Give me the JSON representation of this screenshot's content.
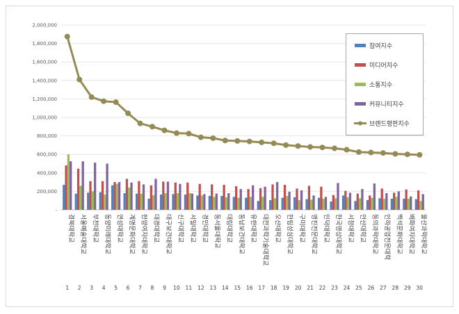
{
  "chart_data": {
    "type": "bar",
    "title": "",
    "xlabel": "",
    "ylabel": "",
    "ylim": [
      0,
      2000000
    ],
    "yticks": [
      "-",
      "200,000",
      "400,000",
      "600,000",
      "800,000",
      "1,000,000",
      "1,200,000",
      "1,400,000",
      "1,600,000",
      "1,800,000",
      "2,000,000"
    ],
    "grid": true,
    "legend_position": "right",
    "categories": [
      "경북대학교",
      "서울예술대학교",
      "부천대학교",
      "동양미래대학교",
      "연성대학교",
      "계명문화대학교",
      "한양여자대학교",
      "대경대학교",
      "대구보건대학교",
      "신구대학교",
      "서일대학교",
      "경민대학교",
      "동서울대학교",
      "대림대학교",
      "동남보건대학교",
      "유한대학교",
      "대전과학기술대학교",
      "오산대학교",
      "한림성심대학교",
      "구미대학교",
      "영진전문대학교",
      "인덕대학교",
      "한국영상대학교",
      "서정대학교",
      "안산대학교",
      "동의과학대학교",
      "인하공업전문대학",
      "백석문화대학교",
      "배화여자대학교",
      "울산과학대학교"
    ],
    "indices": [
      "1",
      "2",
      "3",
      "4",
      "5",
      "6",
      "7",
      "8",
      "9",
      "10",
      "11",
      "12",
      "13",
      "14",
      "15",
      "16",
      "17",
      "18",
      "19",
      "20",
      "21",
      "22",
      "23",
      "24",
      "25",
      "26",
      "27",
      "28",
      "29",
      "30"
    ],
    "series": [
      {
        "name": "참여지수",
        "type": "bar",
        "color": "#4F81BD",
        "values": [
          270000,
          175000,
          185000,
          190000,
          265000,
          180000,
          175000,
          120000,
          165000,
          170000,
          165000,
          155000,
          150000,
          150000,
          140000,
          130000,
          95000,
          105000,
          130000,
          135000,
          115000,
          130000,
          90000,
          155000,
          95000,
          105000,
          125000,
          120000,
          120000,
          115000
        ]
      },
      {
        "name": "미디어지수",
        "type": "bar",
        "color": "#C0504D",
        "values": [
          480000,
          445000,
          310000,
          310000,
          300000,
          335000,
          310000,
          265000,
          305000,
          295000,
          295000,
          280000,
          275000,
          270000,
          255000,
          225000,
          235000,
          275000,
          270000,
          230000,
          260000,
          250000,
          160000,
          205000,
          175000,
          155000,
          230000,
          185000,
          220000,
          210000
        ]
      },
      {
        "name": "소통지수",
        "type": "bar",
        "color": "#9BBB59",
        "values": [
          600000,
          260000,
          200000,
          165000,
          280000,
          240000,
          175000,
          160000,
          180000,
          180000,
          180000,
          155000,
          140000,
          135000,
          130000,
          140000,
          140000,
          125000,
          150000,
          105000,
          110000,
          120000,
          125000,
          135000,
          125000,
          130000,
          120000,
          140000,
          120000,
          95000
        ]
      },
      {
        "name": "커뮤니티지수",
        "type": "bar",
        "color": "#8064A2",
        "values": [
          525000,
          525000,
          510000,
          500000,
          300000,
          295000,
          275000,
          335000,
          305000,
          280000,
          175000,
          170000,
          175000,
          180000,
          225000,
          265000,
          250000,
          300000,
          195000,
          210000,
          155000,
          140000,
          290000,
          185000,
          225000,
          285000,
          180000,
          200000,
          145000,
          170000
        ]
      },
      {
        "name": "브랜드평판지수",
        "type": "line",
        "color": "#948A54",
        "values": [
          1875000,
          1410000,
          1220000,
          1175000,
          1165000,
          1045000,
          935000,
          900000,
          860000,
          830000,
          825000,
          785000,
          775000,
          750000,
          745000,
          740000,
          730000,
          720000,
          700000,
          690000,
          680000,
          675000,
          665000,
          650000,
          625000,
          620000,
          615000,
          605000,
          600000,
          595000
        ]
      }
    ]
  }
}
